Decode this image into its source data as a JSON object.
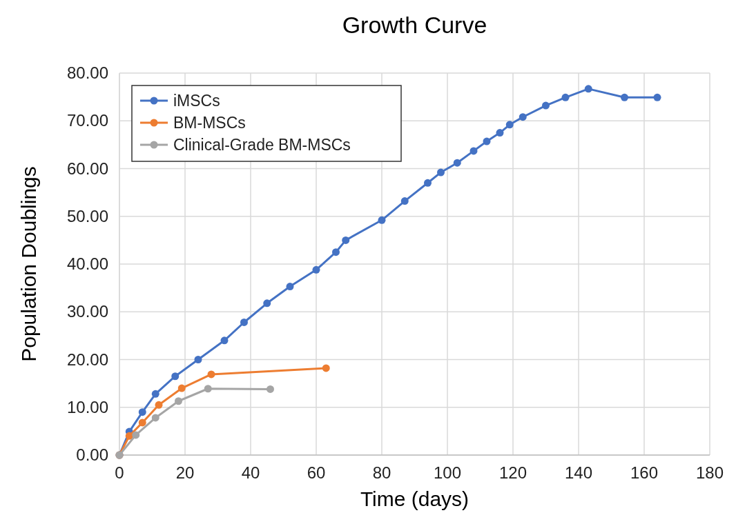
{
  "chart_data": {
    "type": "line",
    "title": "Growth Curve",
    "xlabel": "Time (days)",
    "ylabel": "Population Doublings",
    "xlim": [
      0,
      180
    ],
    "xticks": [
      0,
      20,
      40,
      60,
      80,
      100,
      120,
      140,
      160,
      180
    ],
    "ylim": [
      0,
      80
    ],
    "yticks": [
      {
        "value": 0,
        "label": "0.00"
      },
      {
        "value": 10,
        "label": "10.00"
      },
      {
        "value": 20,
        "label": "20.00"
      },
      {
        "value": 30,
        "label": "30.00"
      },
      {
        "value": 40,
        "label": "40.00"
      },
      {
        "value": 50,
        "label": "50.00"
      },
      {
        "value": 60,
        "label": "60.00"
      },
      {
        "value": 70,
        "label": "70.00"
      },
      {
        "value": 80,
        "label": "80.00"
      }
    ],
    "grid": true,
    "legend": "top left",
    "marker": "circle",
    "line_style": "solid",
    "series": [
      {
        "name": "iMSCs",
        "color": "#4472c4",
        "x": [
          0,
          3,
          7,
          11,
          17,
          24,
          32,
          38,
          45,
          52,
          60,
          66,
          69,
          80,
          87,
          94,
          98,
          103,
          108,
          112,
          116,
          119,
          123,
          130,
          136,
          143,
          154,
          164
        ],
        "values": [
          0,
          4.9,
          9,
          12.8,
          16.5,
          20,
          24,
          27.8,
          31.8,
          35.3,
          38.8,
          42.5,
          45,
          49.2,
          53.2,
          57,
          59.2,
          61.2,
          63.7,
          65.7,
          67.5,
          69.2,
          70.8,
          73.2,
          74.9,
          76.7,
          74.9,
          74.9
        ]
      },
      {
        "name": "BM-MSCs",
        "color": "#ed7d31",
        "x": [
          0,
          3,
          7,
          12,
          19,
          28,
          63
        ],
        "values": [
          0,
          4,
          6.8,
          10.5,
          14,
          16.9,
          18.2
        ]
      },
      {
        "name": "Clinical-Grade BM-MSCs",
        "color": "#a5a5a5",
        "x": [
          0,
          5,
          11,
          18,
          27,
          46
        ],
        "values": [
          0,
          4.2,
          7.8,
          11.3,
          13.9,
          13.8
        ]
      }
    ]
  }
}
